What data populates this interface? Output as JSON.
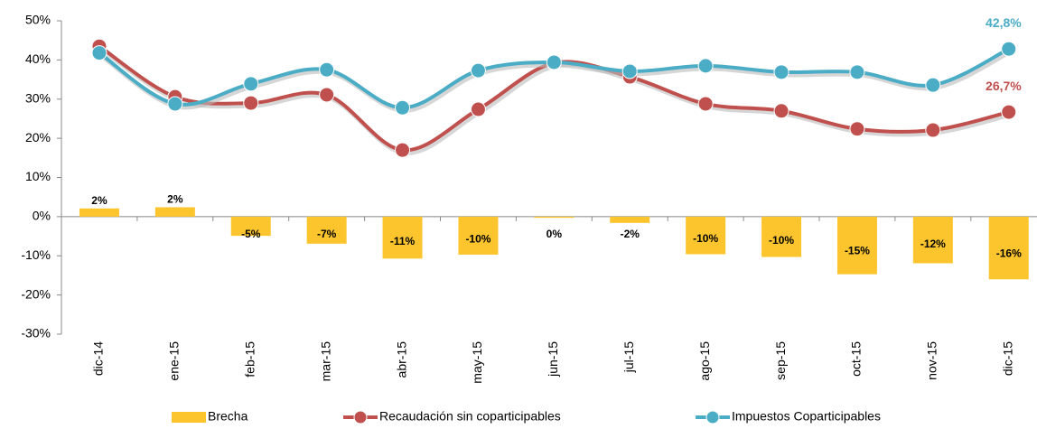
{
  "chart_data": {
    "type": "bar_line",
    "categories": [
      "dic-14",
      "ene-15",
      "feb-15",
      "mar-15",
      "abr-15",
      "may-15",
      "jun-15",
      "jul-15",
      "ago-15",
      "sep-15",
      "oct-15",
      "nov-15",
      "dic-15"
    ],
    "series": [
      {
        "name": "Brecha",
        "type": "bar",
        "color": "#fcc52e",
        "values": [
          2.1,
          2.4,
          -4.9,
          -6.9,
          -10.7,
          -9.7,
          -0.3,
          -1.6,
          -9.6,
          -10.3,
          -14.7,
          -11.9,
          -16.0
        ],
        "value_labels": [
          "2%",
          "2%",
          "-5%",
          "-7%",
          "-11%",
          "-10%",
          "0%",
          "-2%",
          "-10%",
          "-10%",
          "-15%",
          "-12%",
          "-16%"
        ]
      },
      {
        "name": "Recaudación sin coparticipables",
        "type": "line",
        "color": "#c0504d",
        "values": [
          43.5,
          30.6,
          29.0,
          31.1,
          17.0,
          27.4,
          39.2,
          35.7,
          28.8,
          27.0,
          22.4,
          22.1,
          26.7
        ],
        "value_labels": [
          null,
          null,
          null,
          null,
          null,
          null,
          null,
          null,
          null,
          null,
          null,
          null,
          "26,7%"
        ]
      },
      {
        "name": "Impuestos Coparticipables",
        "type": "line",
        "color": "#4bacc6",
        "values": [
          41.8,
          28.8,
          33.9,
          37.5,
          27.8,
          37.3,
          39.4,
          37.1,
          38.5,
          36.9,
          36.9,
          33.6,
          42.8
        ],
        "value_labels": [
          null,
          null,
          null,
          null,
          null,
          null,
          null,
          null,
          null,
          null,
          null,
          null,
          "42,8%"
        ]
      }
    ],
    "ylim": [
      -30,
      50
    ],
    "yticks": [
      {
        "value": -30,
        "label": "-30%"
      },
      {
        "value": -20,
        "label": "-20%"
      },
      {
        "value": -10,
        "label": "-10%"
      },
      {
        "value": 0,
        "label": "0%"
      },
      {
        "value": 10,
        "label": "10%"
      },
      {
        "value": 20,
        "label": "20%"
      },
      {
        "value": 30,
        "label": "30%"
      },
      {
        "value": 40,
        "label": "40%"
      },
      {
        "value": 50,
        "label": "50%"
      }
    ],
    "legend": "bottom"
  }
}
